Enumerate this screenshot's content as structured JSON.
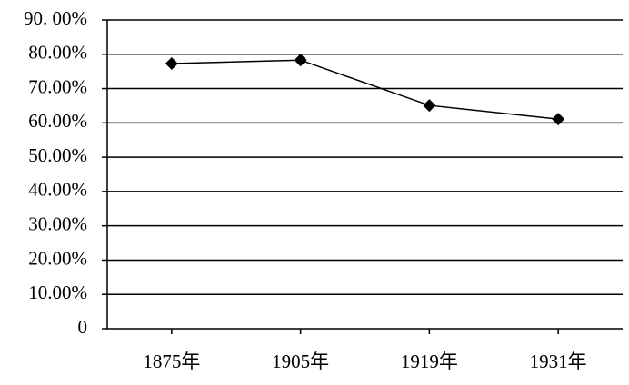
{
  "chart_data": {
    "type": "line",
    "categories": [
      "1875年",
      "1905年",
      "1919年",
      "1931年"
    ],
    "values": [
      77.3,
      78.3,
      65.1,
      61.1
    ],
    "color": "#000000",
    "ylim": [
      0,
      90
    ],
    "yticks": [
      0,
      {
        "value": 10,
        "label": "10.00%"
      },
      {
        "value": 20,
        "label": "20.00%"
      },
      {
        "value": 30,
        "label": "30.00%"
      },
      {
        "value": 40,
        "label": "40.00%"
      },
      {
        "value": 50,
        "label": "50.00%"
      },
      {
        "value": 60,
        "label": "60.00%"
      },
      {
        "value": 70,
        "label": "70.00%"
      },
      {
        "value": 80,
        "label": "80.00%"
      },
      {
        "value": 90,
        "label": "90. 00%"
      }
    ],
    "grid": true
  }
}
